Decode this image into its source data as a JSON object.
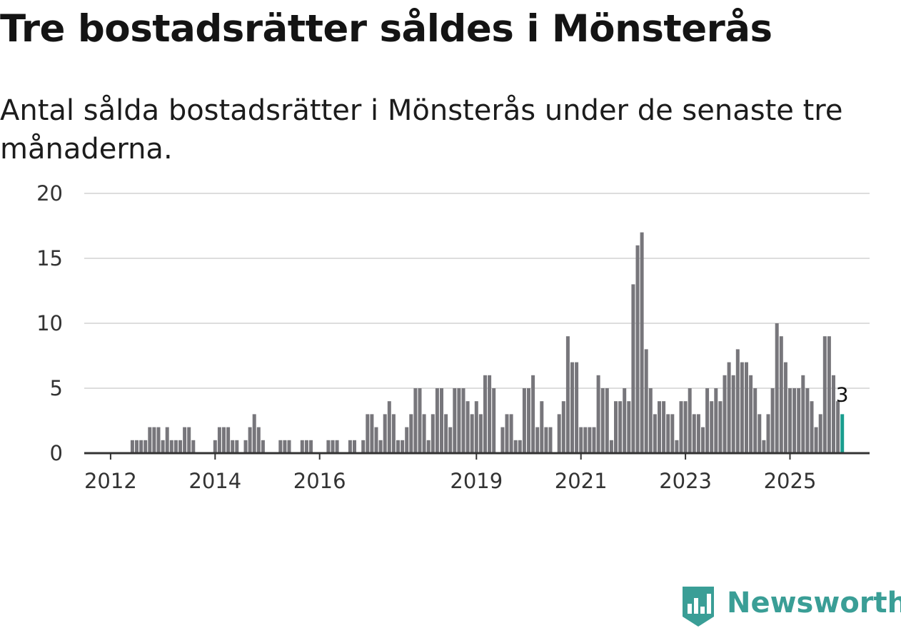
{
  "title": "Tre bostadsrätter såldes i Mönsterås",
  "subtitle": "Antal sålda bostadsrätter i Mönsterås under de senaste tre månaderna.",
  "brand": {
    "name": "Newsworthy",
    "color": "#3a9e96",
    "icon": "bar-chart-badge-icon"
  },
  "colors": {
    "bar": "#77767b",
    "highlight": "#1a9e8f",
    "grid": "#dddddd",
    "axis": "#333333"
  },
  "chart_data": {
    "type": "bar",
    "title": "Tre bostadsrätter såldes i Mönsterås",
    "xlabel": "",
    "ylabel": "",
    "ylim": [
      0,
      20
    ],
    "yticks": [
      0,
      5,
      10,
      15,
      20
    ],
    "grid": true,
    "start_month": "2011-09",
    "x_tick_labels": [
      {
        "label": "2012",
        "month_index": 4
      },
      {
        "label": "2014",
        "month_index": 28
      },
      {
        "label": "2016",
        "month_index": 52
      },
      {
        "label": "2019",
        "month_index": 88
      },
      {
        "label": "2021",
        "month_index": 112
      },
      {
        "label": "2023",
        "month_index": 136
      },
      {
        "label": "2025",
        "month_index": 160
      }
    ],
    "values": [
      0,
      0,
      0,
      0,
      0,
      0,
      0,
      0,
      0,
      1,
      1,
      1,
      1,
      2,
      2,
      2,
      1,
      2,
      1,
      1,
      1,
      2,
      2,
      1,
      0,
      0,
      0,
      0,
      1,
      2,
      2,
      2,
      1,
      1,
      0,
      1,
      2,
      3,
      2,
      1,
      0,
      0,
      0,
      1,
      1,
      1,
      0,
      0,
      1,
      1,
      1,
      0,
      0,
      0,
      1,
      1,
      1,
      0,
      0,
      1,
      1,
      0,
      1,
      3,
      3,
      2,
      1,
      3,
      4,
      3,
      1,
      1,
      2,
      3,
      5,
      5,
      3,
      1,
      3,
      5,
      5,
      3,
      2,
      5,
      5,
      5,
      4,
      3,
      4,
      3,
      6,
      6,
      5,
      0,
      2,
      3,
      3,
      1,
      1,
      5,
      5,
      6,
      2,
      4,
      2,
      2,
      0,
      3,
      4,
      9,
      7,
      7,
      2,
      2,
      2,
      2,
      6,
      5,
      5,
      1,
      4,
      4,
      5,
      4,
      13,
      16,
      17,
      8,
      5,
      3,
      4,
      4,
      3,
      3,
      1,
      4,
      4,
      5,
      3,
      3,
      2,
      5,
      4,
      5,
      4,
      6,
      7,
      6,
      8,
      7,
      7,
      6,
      5,
      3,
      1,
      3,
      5,
      10,
      9,
      7,
      5,
      5,
      5,
      6,
      5,
      4,
      2,
      3,
      9,
      9,
      6,
      4,
      3
    ],
    "highlight_last": true,
    "annotation": {
      "text": "3",
      "target": "last-bar"
    }
  }
}
